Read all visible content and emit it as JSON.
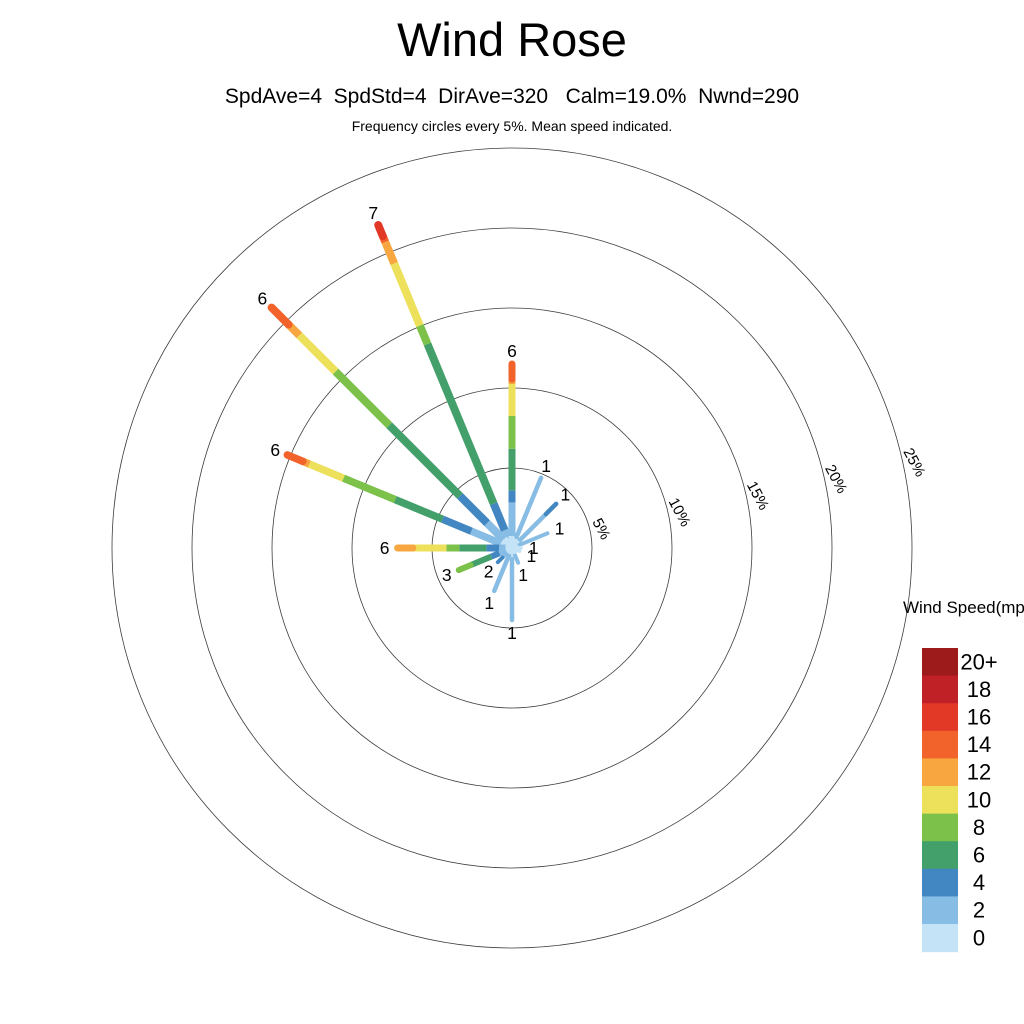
{
  "header": {
    "title": "Wind Rose",
    "stats": "SpdAve=4  SpdStd=4  DirAve=320   Calm=19.0%  Nwnd=290",
    "note": "Frequency circles every 5%. Mean speed indicated."
  },
  "legend": {
    "title": "Wind Speed(mph)",
    "bins": [
      {
        "label": "20+",
        "color": "#9E1B1B"
      },
      {
        "label": "18",
        "color": "#C02126"
      },
      {
        "label": "16",
        "color": "#E23927"
      },
      {
        "label": "14",
        "color": "#F2632B"
      },
      {
        "label": "12",
        "color": "#F8A63F"
      },
      {
        "label": "10",
        "color": "#EDE05A"
      },
      {
        "label": "8",
        "color": "#7CC24A"
      },
      {
        "label": "6",
        "color": "#43A06A"
      },
      {
        "label": "4",
        "color": "#4287C1"
      },
      {
        "label": "2",
        "color": "#87BCE4"
      },
      {
        "label": "0",
        "color": "#C5E3F6"
      }
    ]
  },
  "chart_data": {
    "type": "windrose",
    "title": "Wind Rose",
    "stats": {
      "SpdAve": 4,
      "SpdStd": 4,
      "DirAve": 320,
      "Calm_pct": 19.0,
      "Nwnd": 290
    },
    "note": "Frequency circles every 5%. Mean speed indicated.",
    "ring_step_pct": 5,
    "rings_pct": [
      5,
      10,
      15,
      20,
      25
    ],
    "ring_labels": [
      "5%",
      "10%",
      "15%",
      "20%",
      "25%"
    ],
    "legend_title": "Wind Speed(mph)",
    "speed_bins_mph": [
      "0",
      "2",
      "4",
      "6",
      "8",
      "10",
      "12",
      "14",
      "16",
      "18",
      "20+"
    ],
    "speed_colors": {
      "0": "#C5E3F6",
      "2": "#87BCE4",
      "4": "#4287C1",
      "6": "#43A06A",
      "8": "#7CC24A",
      "10": "#EDE05A",
      "12": "#F8A63F",
      "14": "#F2632B",
      "16": "#E23927",
      "18": "#C02126",
      "20+": "#9E1B1B"
    },
    "directions": [
      {
        "dir": "N",
        "angle_deg": 0,
        "mean_mph": 6,
        "total_pct": 11.5,
        "width": 7,
        "segments": [
          {
            "bin": "0",
            "pct": 0.75
          },
          {
            "bin": "2",
            "pct": 2.1
          },
          {
            "bin": "4",
            "pct": 0.75
          },
          {
            "bin": "6",
            "pct": 2.6
          },
          {
            "bin": "8",
            "pct": 2.05
          },
          {
            "bin": "10",
            "pct": 2.0
          },
          {
            "bin": "12",
            "pct": 0.3
          },
          {
            "bin": "14",
            "pct": 0.95
          }
        ]
      },
      {
        "dir": "NNE",
        "angle_deg": 22.5,
        "mean_mph": 1,
        "total_pct": 4.75,
        "width": 4.5,
        "segments": [
          {
            "bin": "0",
            "pct": 0.75
          },
          {
            "bin": "2",
            "pct": 4.0
          }
        ]
      },
      {
        "dir": "NE",
        "angle_deg": 45,
        "mean_mph": 1,
        "total_pct": 3.9,
        "width": 4.5,
        "segments": [
          {
            "bin": "0",
            "pct": 0.6
          },
          {
            "bin": "2",
            "pct": 2.4
          },
          {
            "bin": "4",
            "pct": 0.9
          }
        ]
      },
      {
        "dir": "ENE",
        "angle_deg": 67.5,
        "mean_mph": 1,
        "total_pct": 2.4,
        "width": 4,
        "segments": [
          {
            "bin": "0",
            "pct": 0.5
          },
          {
            "bin": "2",
            "pct": 1.9
          }
        ]
      },
      {
        "dir": "E",
        "angle_deg": 90,
        "mean_mph": 1,
        "total_pct": 0.55,
        "width": 4,
        "segments": [
          {
            "bin": "0",
            "pct": 0.55
          }
        ]
      },
      {
        "dir": "ESE",
        "angle_deg": 112.5,
        "mean_mph": 1,
        "total_pct": 0.5,
        "width": 4,
        "segments": [
          {
            "bin": "0",
            "pct": 0.5
          }
        ]
      },
      {
        "dir": "SSE",
        "angle_deg": 157.5,
        "mean_mph": 1,
        "total_pct": 1.0,
        "width": 4,
        "segments": [
          {
            "bin": "0",
            "pct": 0.4
          },
          {
            "bin": "2",
            "pct": 0.6
          }
        ]
      },
      {
        "dir": "S",
        "angle_deg": 180,
        "mean_mph": 1,
        "total_pct": 4.5,
        "width": 4.5,
        "segments": [
          {
            "bin": "0",
            "pct": 0.7
          },
          {
            "bin": "2",
            "pct": 3.8
          }
        ]
      },
      {
        "dir": "SSW",
        "angle_deg": 202.5,
        "mean_mph": 1,
        "total_pct": 2.9,
        "width": 4.5,
        "segments": [
          {
            "bin": "0",
            "pct": 0.5
          },
          {
            "bin": "2",
            "pct": 2.4
          }
        ]
      },
      {
        "dir": "SW",
        "angle_deg": 225,
        "mean_mph": 2,
        "total_pct": 1.25,
        "width": 4,
        "segments": [
          {
            "bin": "0",
            "pct": 0.3
          },
          {
            "bin": "2",
            "pct": 0.55
          },
          {
            "bin": "4",
            "pct": 0.4
          }
        ]
      },
      {
        "dir": "WSW",
        "angle_deg": 247.5,
        "mean_mph": 3,
        "total_pct": 3.6,
        "width": 6,
        "segments": [
          {
            "bin": "0",
            "pct": 0.3
          },
          {
            "bin": "2",
            "pct": 0.55
          },
          {
            "bin": "4",
            "pct": 0.55
          },
          {
            "bin": "6",
            "pct": 1.4
          },
          {
            "bin": "8",
            "pct": 0.8
          }
        ]
      },
      {
        "dir": "W",
        "angle_deg": 270,
        "mean_mph": 6,
        "total_pct": 7.15,
        "width": 7,
        "segments": [
          {
            "bin": "0",
            "pct": 0.4
          },
          {
            "bin": "2",
            "pct": 0.4
          },
          {
            "bin": "4",
            "pct": 0.8
          },
          {
            "bin": "6",
            "pct": 1.7
          },
          {
            "bin": "8",
            "pct": 0.8
          },
          {
            "bin": "10",
            "pct": 2.1
          },
          {
            "bin": "12",
            "pct": 0.95
          }
        ]
      },
      {
        "dir": "WNW",
        "angle_deg": 292.5,
        "mean_mph": 6,
        "total_pct": 15.2,
        "width": 7.5,
        "segments": [
          {
            "bin": "0",
            "pct": 0.75
          },
          {
            "bin": "2",
            "pct": 2.0
          },
          {
            "bin": "4",
            "pct": 1.95
          },
          {
            "bin": "6",
            "pct": 3.2
          },
          {
            "bin": "8",
            "pct": 3.5
          },
          {
            "bin": "10",
            "pct": 2.3
          },
          {
            "bin": "12",
            "pct": 0.45
          },
          {
            "bin": "14",
            "pct": 1.05
          }
        ]
      },
      {
        "dir": "NW",
        "angle_deg": 315,
        "mean_mph": 6,
        "total_pct": 21.25,
        "width": 8,
        "segments": [
          {
            "bin": "0",
            "pct": 0.75
          },
          {
            "bin": "2",
            "pct": 1.45
          },
          {
            "bin": "4",
            "pct": 2.4
          },
          {
            "bin": "6",
            "pct": 6.25
          },
          {
            "bin": "8",
            "pct": 4.75
          },
          {
            "bin": "10",
            "pct": 3.2
          },
          {
            "bin": "12",
            "pct": 0.95
          },
          {
            "bin": "14",
            "pct": 1.5
          }
        ]
      },
      {
        "dir": "NNW",
        "angle_deg": 337.5,
        "mean_mph": 7,
        "total_pct": 21.85,
        "width": 8,
        "segments": [
          {
            "bin": "0",
            "pct": 0.6
          },
          {
            "bin": "2",
            "pct": 0.6
          },
          {
            "bin": "4",
            "pct": 1.8
          },
          {
            "bin": "6",
            "pct": 10.8
          },
          {
            "bin": "8",
            "pct": 1.25
          },
          {
            "bin": "10",
            "pct": 4.2
          },
          {
            "bin": "12",
            "pct": 1.45
          },
          {
            "bin": "14",
            "pct": 0.4
          },
          {
            "bin": "16",
            "pct": 0.75
          }
        ]
      }
    ]
  },
  "layout_labels": {
    "mean_speed_label": "mean-speed-label",
    "ring_label": "frequency-ring-label"
  }
}
